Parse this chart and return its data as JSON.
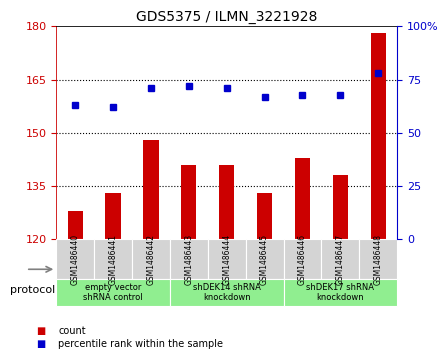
{
  "title": "GDS5375 / ILMN_3221928",
  "samples": [
    "GSM1486440",
    "GSM1486441",
    "GSM1486442",
    "GSM1486443",
    "GSM1486444",
    "GSM1486445",
    "GSM1486446",
    "GSM1486447",
    "GSM1486448"
  ],
  "counts": [
    128,
    133,
    148,
    141,
    141,
    133,
    143,
    138,
    178
  ],
  "percentile": [
    63,
    62,
    71,
    72,
    71,
    67,
    68,
    68,
    78
  ],
  "ylim_left": [
    120,
    180
  ],
  "ylim_right": [
    0,
    100
  ],
  "yticks_left": [
    120,
    135,
    150,
    165,
    180
  ],
  "yticks_right": [
    0,
    25,
    50,
    75,
    100
  ],
  "groups": [
    {
      "label": "empty vector\nshRNA control",
      "indices": [
        0,
        1,
        2
      ],
      "color": "#ccffcc"
    },
    {
      "label": "shDEK14 shRNA\nknockdown",
      "indices": [
        3,
        4,
        5
      ],
      "color": "#ccffcc"
    },
    {
      "label": "shDEK17 shRNA\nknockdown",
      "indices": [
        6,
        7,
        8
      ],
      "color": "#ccffcc"
    }
  ],
  "bar_color": "#cc0000",
  "dot_color": "#0000cc",
  "grid_color": "#000000",
  "bg_color": "#f0f0f0",
  "plot_bg": "#ffffff",
  "left_axis_color": "#cc0000",
  "right_axis_color": "#0000cc",
  "protocol_label": "protocol",
  "legend_count": "count",
  "legend_pct": "percentile rank within the sample"
}
